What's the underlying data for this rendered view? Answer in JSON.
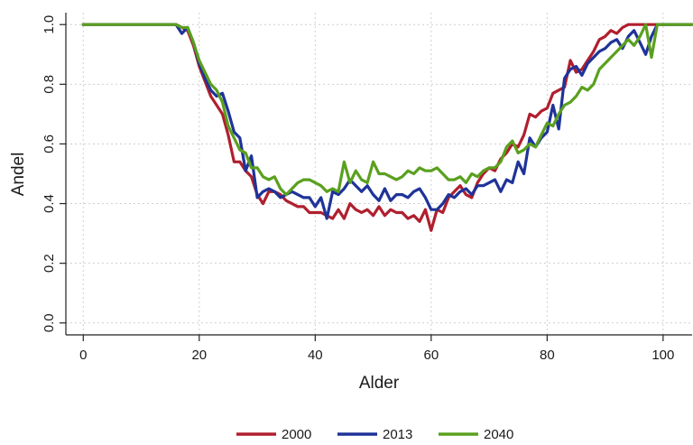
{
  "chart_data": {
    "type": "line",
    "title": "",
    "xlabel": "Alder",
    "ylabel": "Andel",
    "xlim": [
      -3,
      105
    ],
    "ylim": [
      -0.04,
      1.04
    ],
    "xticks": [
      0,
      20,
      40,
      60,
      80,
      100
    ],
    "yticks": [
      0.0,
      0.2,
      0.4,
      0.6,
      0.8,
      1.0
    ],
    "xtick_labels": [
      "0",
      "20",
      "40",
      "60",
      "80",
      "100"
    ],
    "ytick_labels": [
      "0.0",
      "0.2",
      "0.4",
      "0.6",
      "0.8",
      "1.0"
    ],
    "grid": true,
    "legend_position": "bottom",
    "series": [
      {
        "name": "2000",
        "color": "#b01f2e",
        "x": [
          0,
          2,
          4,
          6,
          8,
          10,
          12,
          14,
          16,
          17,
          18,
          19,
          20,
          21,
          22,
          23,
          24,
          25,
          26,
          27,
          28,
          29,
          30,
          31,
          32,
          33,
          34,
          35,
          36,
          37,
          38,
          39,
          40,
          41,
          42,
          43,
          44,
          45,
          46,
          47,
          48,
          49,
          50,
          51,
          52,
          53,
          54,
          55,
          56,
          57,
          58,
          59,
          60,
          61,
          62,
          63,
          64,
          65,
          66,
          67,
          68,
          69,
          70,
          71,
          72,
          73,
          74,
          75,
          76,
          77,
          78,
          79,
          80,
          81,
          82,
          83,
          84,
          85,
          86,
          87,
          88,
          89,
          90,
          91,
          92,
          93,
          94,
          95,
          96,
          97,
          98,
          99,
          100,
          102,
          105
        ],
        "values": [
          1.0,
          1.0,
          1.0,
          1.0,
          1.0,
          1.0,
          1.0,
          1.0,
          1.0,
          0.99,
          0.98,
          0.93,
          0.86,
          0.81,
          0.76,
          0.73,
          0.7,
          0.63,
          0.54,
          0.54,
          0.51,
          0.49,
          0.43,
          0.4,
          0.44,
          0.44,
          0.43,
          0.41,
          0.4,
          0.39,
          0.39,
          0.37,
          0.37,
          0.37,
          0.36,
          0.35,
          0.38,
          0.35,
          0.4,
          0.38,
          0.37,
          0.38,
          0.36,
          0.39,
          0.36,
          0.38,
          0.37,
          0.37,
          0.35,
          0.36,
          0.34,
          0.38,
          0.31,
          0.38,
          0.37,
          0.42,
          0.44,
          0.46,
          0.43,
          0.42,
          0.47,
          0.5,
          0.52,
          0.51,
          0.55,
          0.57,
          0.6,
          0.59,
          0.63,
          0.7,
          0.69,
          0.71,
          0.72,
          0.77,
          0.78,
          0.79,
          0.88,
          0.84,
          0.85,
          0.88,
          0.91,
          0.95,
          0.96,
          0.98,
          0.97,
          0.99,
          1.0,
          1.0,
          1.0,
          1.0,
          1.0,
          1.0,
          1.0,
          1.0,
          1.0
        ]
      },
      {
        "name": "2013",
        "color": "#1f3399",
        "x": [
          0,
          2,
          4,
          6,
          8,
          10,
          12,
          14,
          16,
          17,
          18,
          19,
          20,
          21,
          22,
          23,
          24,
          25,
          26,
          27,
          28,
          29,
          30,
          31,
          32,
          33,
          34,
          35,
          36,
          37,
          38,
          39,
          40,
          41,
          42,
          43,
          44,
          45,
          46,
          47,
          48,
          49,
          50,
          51,
          52,
          53,
          54,
          55,
          56,
          57,
          58,
          59,
          60,
          61,
          62,
          63,
          64,
          65,
          66,
          67,
          68,
          69,
          70,
          71,
          72,
          73,
          74,
          75,
          76,
          77,
          78,
          79,
          80,
          81,
          82,
          83,
          84,
          85,
          86,
          87,
          88,
          89,
          90,
          91,
          92,
          93,
          94,
          95,
          96,
          97,
          98,
          99,
          100,
          102,
          105
        ],
        "values": [
          1.0,
          1.0,
          1.0,
          1.0,
          1.0,
          1.0,
          1.0,
          1.0,
          1.0,
          0.97,
          0.99,
          0.94,
          0.87,
          0.82,
          0.78,
          0.76,
          0.77,
          0.71,
          0.64,
          0.62,
          0.51,
          0.56,
          0.42,
          0.44,
          0.45,
          0.44,
          0.42,
          0.43,
          0.44,
          0.43,
          0.42,
          0.42,
          0.39,
          0.42,
          0.35,
          0.44,
          0.43,
          0.45,
          0.48,
          0.46,
          0.44,
          0.46,
          0.43,
          0.41,
          0.45,
          0.41,
          0.43,
          0.43,
          0.42,
          0.44,
          0.45,
          0.42,
          0.38,
          0.38,
          0.4,
          0.43,
          0.42,
          0.44,
          0.45,
          0.43,
          0.46,
          0.46,
          0.47,
          0.48,
          0.44,
          0.48,
          0.47,
          0.54,
          0.5,
          0.62,
          0.59,
          0.62,
          0.64,
          0.73,
          0.65,
          0.82,
          0.85,
          0.86,
          0.83,
          0.87,
          0.89,
          0.91,
          0.92,
          0.94,
          0.95,
          0.92,
          0.96,
          0.98,
          0.94,
          0.9,
          0.96,
          1.0,
          1.0,
          1.0,
          1.0
        ]
      },
      {
        "name": "2040",
        "color": "#5aa01e",
        "x": [
          0,
          2,
          4,
          6,
          8,
          10,
          12,
          14,
          16,
          17,
          18,
          19,
          20,
          21,
          22,
          23,
          24,
          25,
          26,
          27,
          28,
          29,
          30,
          31,
          32,
          33,
          34,
          35,
          36,
          37,
          38,
          39,
          40,
          41,
          42,
          43,
          44,
          45,
          46,
          47,
          48,
          49,
          50,
          51,
          52,
          53,
          54,
          55,
          56,
          57,
          58,
          59,
          60,
          61,
          62,
          63,
          64,
          65,
          66,
          67,
          68,
          69,
          70,
          71,
          72,
          73,
          74,
          75,
          76,
          77,
          78,
          79,
          80,
          81,
          82,
          83,
          84,
          85,
          86,
          87,
          88,
          89,
          90,
          91,
          92,
          93,
          94,
          95,
          96,
          97,
          98,
          99,
          100,
          102,
          105
        ],
        "values": [
          1.0,
          1.0,
          1.0,
          1.0,
          1.0,
          1.0,
          1.0,
          1.0,
          1.0,
          0.99,
          0.99,
          0.94,
          0.88,
          0.84,
          0.8,
          0.78,
          0.74,
          0.66,
          0.62,
          0.58,
          0.57,
          0.52,
          0.52,
          0.49,
          0.48,
          0.49,
          0.45,
          0.43,
          0.45,
          0.47,
          0.48,
          0.48,
          0.47,
          0.46,
          0.44,
          0.45,
          0.44,
          0.54,
          0.47,
          0.51,
          0.48,
          0.47,
          0.54,
          0.5,
          0.5,
          0.49,
          0.48,
          0.49,
          0.51,
          0.5,
          0.52,
          0.51,
          0.51,
          0.52,
          0.5,
          0.48,
          0.48,
          0.49,
          0.47,
          0.5,
          0.49,
          0.51,
          0.52,
          0.52,
          0.54,
          0.59,
          0.61,
          0.57,
          0.58,
          0.6,
          0.59,
          0.63,
          0.67,
          0.66,
          0.7,
          0.73,
          0.74,
          0.76,
          0.79,
          0.78,
          0.8,
          0.85,
          0.87,
          0.89,
          0.91,
          0.93,
          0.95,
          0.93,
          0.96,
          1.0,
          0.89,
          1.0,
          1.0,
          1.0,
          1.0
        ]
      }
    ]
  }
}
